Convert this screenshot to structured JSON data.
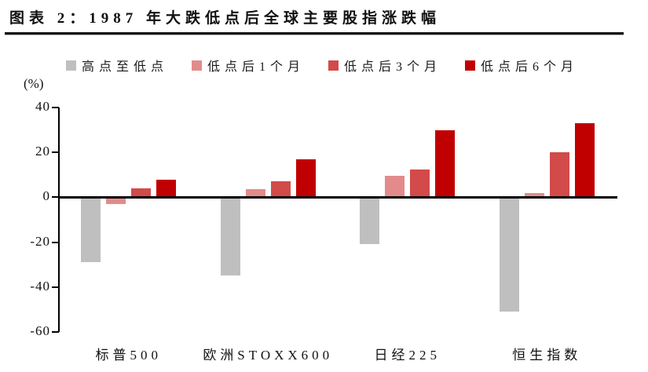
{
  "header": {
    "title": "图表 2：1987 年大跌低点后全球主要股指涨跌幅"
  },
  "chart_data": {
    "type": "bar",
    "title": "图表 2：1987 年大跌低点后全球主要股指涨跌幅",
    "unit_label": "(%)",
    "categories": [
      "标普500",
      "欧洲STOXX600",
      "日经225",
      "恒生指数"
    ],
    "series": [
      {
        "name": "高点至低点",
        "color": "#bfbfbf",
        "values": [
          -29,
          -35,
          -21,
          -51
        ]
      },
      {
        "name": "低点后1个月",
        "color": "#e38b8b",
        "values": [
          -3,
          3.5,
          9.5,
          2
        ]
      },
      {
        "name": "低点后3个月",
        "color": "#d24a4a",
        "values": [
          4,
          7,
          12.5,
          20
        ]
      },
      {
        "name": "低点后6个月",
        "color": "#c00000",
        "values": [
          8,
          17,
          30,
          33
        ]
      }
    ],
    "ylim": [
      -60,
      40
    ],
    "ytick_step": 20,
    "yticks": [
      40,
      20,
      0,
      -20,
      -40,
      -60
    ],
    "grid": false,
    "legend_position": "top",
    "axis_color": "#000000",
    "background": "#ffffff"
  }
}
